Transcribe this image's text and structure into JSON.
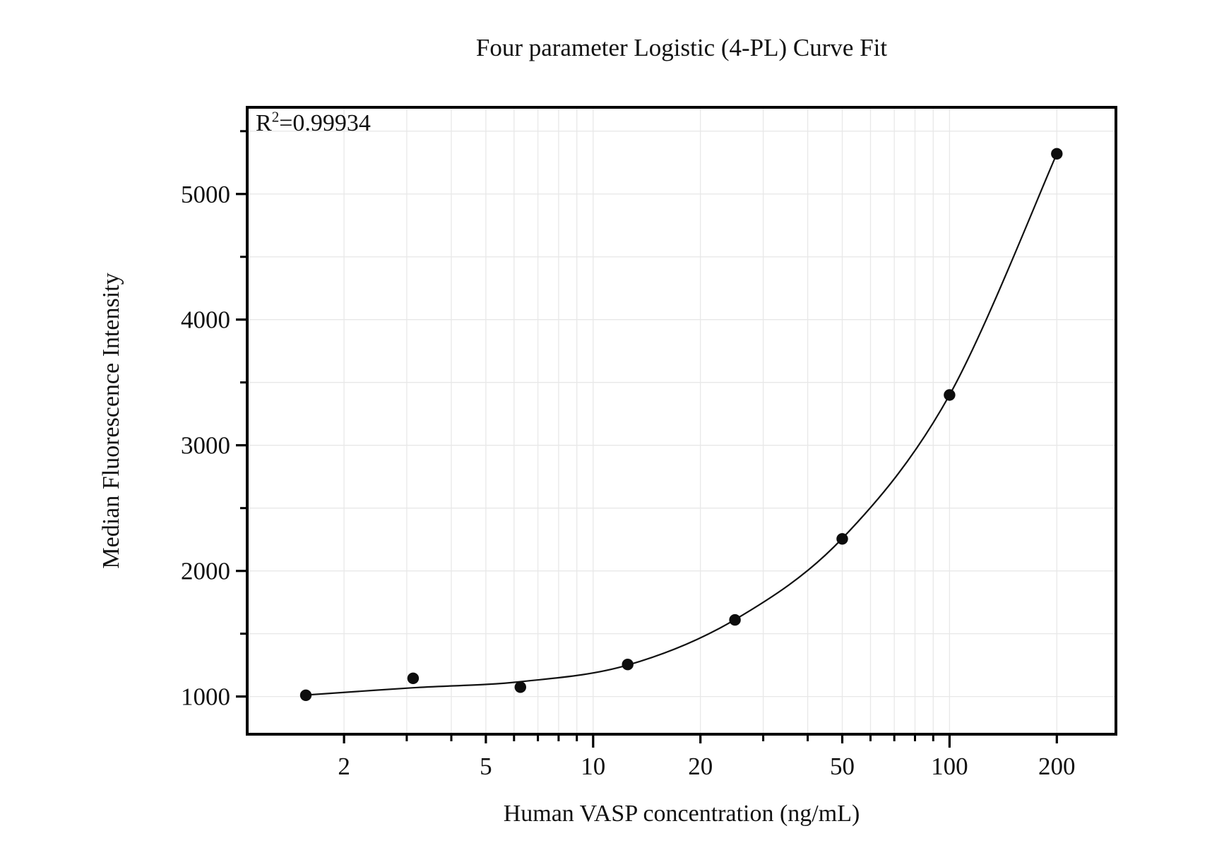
{
  "chart": {
    "title": "Four parameter Logistic (4-PL) Curve Fit",
    "annotation": {
      "r": "R",
      "exp": "2",
      "eq": "=",
      "value": "0.99934"
    },
    "xlabel": "Human VASP concentration (ng/mL)",
    "ylabel": "Median Fluorescence Intensity",
    "colors": {
      "curve": "#111111",
      "points": "#0d0d0d",
      "grid": "#e8e8e8",
      "axis": "#000000",
      "text": "#111111",
      "background": "#ffffff"
    },
    "chart_data": {
      "type": "scatter",
      "title": "Four parameter Logistic (4-PL) Curve Fit",
      "xlabel": "Human VASP concentration (ng/mL)",
      "ylabel": "Median Fluorescence Intensity",
      "x_scale": "log",
      "y_scale": "linear",
      "grid": true,
      "r_squared": "0.99934",
      "x": [
        1.5625,
        3.125,
        6.25,
        12.5,
        25,
        50,
        100,
        200
      ],
      "y": [
        1010,
        1145,
        1075,
        1255,
        1610,
        2255,
        3400,
        5320
      ],
      "fit_curve_y": [
        1012,
        1070,
        1118,
        1250,
        1612,
        2258,
        3400,
        5320
      ],
      "xlim": [
        1.07,
        293
      ],
      "ylim": [
        700,
        5690
      ],
      "x_major_ticks": [
        2,
        5,
        10,
        20,
        50,
        100,
        200
      ],
      "x_tick_labels": [
        "2",
        "5",
        "10",
        "20",
        "50",
        "100",
        "200"
      ],
      "x_minor_ticks": [
        3,
        4,
        6,
        7,
        8,
        9,
        30,
        40,
        60,
        70,
        80,
        90
      ],
      "x_decade_ticks": [
        10,
        100
      ],
      "y_major_ticks": [
        1000,
        2000,
        3000,
        4000,
        5000
      ],
      "y_tick_labels": [
        "1000",
        "2000",
        "3000",
        "4000",
        "5000"
      ],
      "y_minor_ticks": [
        1500,
        2500,
        3500,
        4500,
        5500
      ]
    }
  }
}
